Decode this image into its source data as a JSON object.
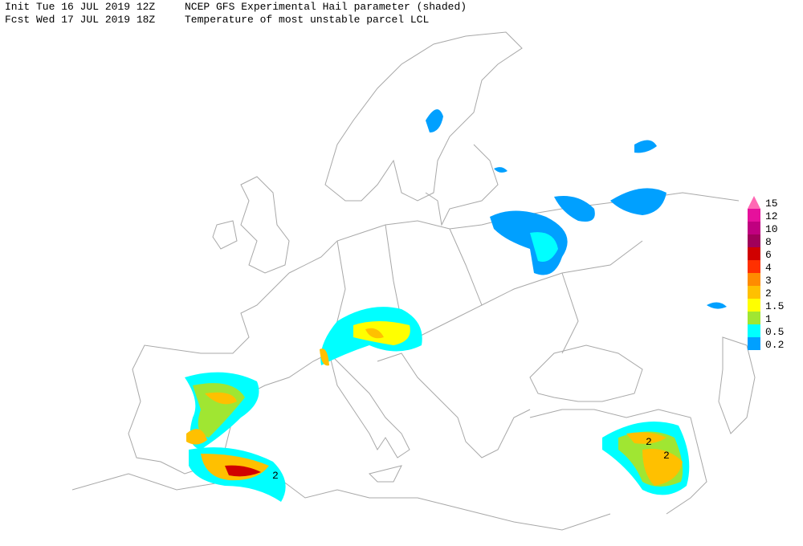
{
  "header": {
    "line1": {
      "init": "Init  Tue 16 JUL 2019 12Z",
      "title": "NCEP GFS Experimental Hail parameter (shaded)"
    },
    "line2": {
      "forecast": "Fcst Wed 17 JUL 2019 18Z",
      "subtitle": "Temperature of most unstable parcel LCL"
    }
  },
  "contour_labels": [
    "2",
    "2",
    "2"
  ],
  "legend": {
    "levels": [
      {
        "value": 15,
        "color": "#ff69b4"
      },
      {
        "value": 12,
        "color": "#e6109c"
      },
      {
        "value": 10,
        "color": "#c00080"
      },
      {
        "value": 8,
        "color": "#a0005a"
      },
      {
        "value": 6,
        "color": "#d00000"
      },
      {
        "value": 4,
        "color": "#ff3000"
      },
      {
        "value": 3,
        "color": "#ff8c00"
      },
      {
        "value": 2,
        "color": "#ffc000"
      },
      {
        "value": 1.5,
        "color": "#ffff00"
      },
      {
        "value": 1,
        "color": "#a0e632"
      },
      {
        "value": 0.5,
        "color": "#00ffff"
      },
      {
        "value": 0.2,
        "color": "#00a0ff"
      }
    ]
  }
}
